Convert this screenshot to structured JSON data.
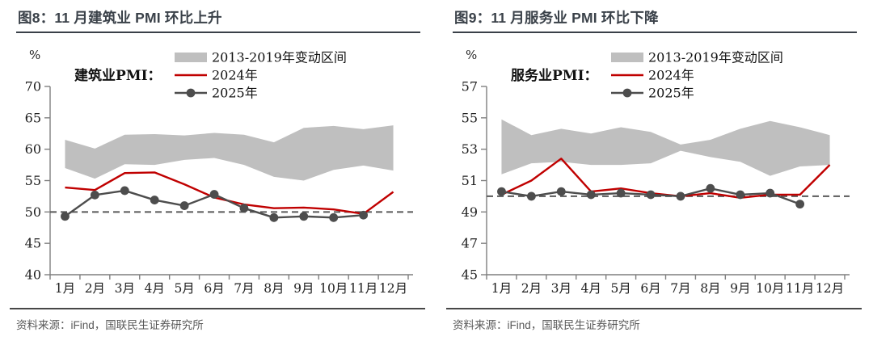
{
  "colors": {
    "band": "#bfbfbf",
    "line2024": "#c00000",
    "line2025": "#4d4d4d",
    "dashed": "#595959",
    "axis": "#7f7f7f",
    "tick_label": "#1f1f1f",
    "title": "#3a4149",
    "source": "#595959"
  },
  "panels": [
    {
      "title": "图8：11 月建筑业 PMI 环比上升",
      "source": "资料来源：iFind，国联民生证券研究所"
    },
    {
      "title": "图9：11 月服务业 PMI 环比下降",
      "source": "资料来源：iFind，国联民生证券研究所"
    }
  ],
  "chart_data": [
    {
      "type": "area+line",
      "title": "图8：11 月建筑业 PMI 环比上升",
      "series_label": "建筑业PMI：",
      "unit": "%",
      "categories": [
        "1月",
        "2月",
        "3月",
        "4月",
        "5月",
        "6月",
        "7月",
        "8月",
        "9月",
        "10月",
        "11月",
        "12月"
      ],
      "ylim": [
        40,
        70
      ],
      "ytick_step": 5,
      "baseline": 50,
      "grid": false,
      "legend_position": "top",
      "legend": [
        "2013-2019年变动区间",
        "2024年",
        "2025年"
      ],
      "band": {
        "name": "2013-2019年变动区间",
        "upper": [
          61.5,
          60.1,
          62.3,
          62.4,
          62.2,
          62.6,
          62.3,
          61.1,
          63.4,
          63.7,
          63.2,
          63.8
        ],
        "lower": [
          57.0,
          55.3,
          57.6,
          57.5,
          58.3,
          58.6,
          57.5,
          55.6,
          55.0,
          56.7,
          57.4,
          56.6
        ]
      },
      "series": [
        {
          "name": "2024年",
          "color_key": "line2024",
          "marker": false,
          "values": [
            53.9,
            53.5,
            56.2,
            56.3,
            54.4,
            52.3,
            51.2,
            50.6,
            50.7,
            50.4,
            49.7,
            53.2
          ]
        },
        {
          "name": "2025年",
          "color_key": "line2025",
          "marker": true,
          "values": [
            49.3,
            52.7,
            53.4,
            51.9,
            51.0,
            52.8,
            50.6,
            49.1,
            49.3,
            49.1,
            49.5
          ]
        }
      ]
    },
    {
      "type": "area+line",
      "title": "图9：11 月服务业 PMI 环比下降",
      "series_label": "服务业PMI：",
      "unit": "%",
      "categories": [
        "1月",
        "2月",
        "3月",
        "4月",
        "5月",
        "6月",
        "7月",
        "8月",
        "9月",
        "10月",
        "11月",
        "12月"
      ],
      "ylim": [
        45,
        57
      ],
      "ytick_step": 2,
      "baseline": 50,
      "grid": false,
      "legend_position": "top",
      "legend": [
        "2013-2019年变动区间",
        "2024年",
        "2025年"
      ],
      "band": {
        "name": "2013-2019年变动区间",
        "upper": [
          54.9,
          53.9,
          54.3,
          54.0,
          54.4,
          54.1,
          53.3,
          53.6,
          54.3,
          54.8,
          54.4,
          53.9
        ],
        "lower": [
          51.4,
          52.1,
          52.2,
          52.0,
          52.0,
          52.1,
          52.9,
          52.5,
          52.2,
          51.3,
          51.9,
          52.0
        ]
      },
      "series": [
        {
          "name": "2024年",
          "color_key": "line2024",
          "marker": false,
          "values": [
            50.1,
            51.0,
            52.4,
            50.3,
            50.5,
            50.2,
            50.0,
            50.2,
            49.9,
            50.1,
            50.1,
            52.0
          ]
        },
        {
          "name": "2025年",
          "color_key": "line2025",
          "marker": true,
          "values": [
            50.3,
            50.0,
            50.3,
            50.1,
            50.2,
            50.1,
            50.0,
            50.5,
            50.1,
            50.2,
            49.5
          ]
        }
      ]
    }
  ]
}
